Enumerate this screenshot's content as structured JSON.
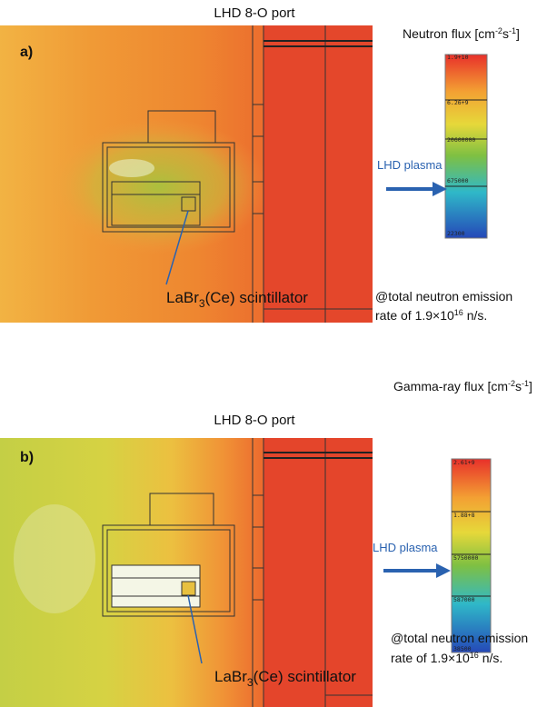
{
  "panels": [
    {
      "port_label": "LHD 8-O port",
      "panel_label": "a)",
      "flux_label": [
        "Neutron flux [cm",
        "-2",
        "s",
        "-1",
        "]"
      ],
      "colorbar_labels": [
        "1.9+10",
        "6.26+9",
        "20600000",
        "675000",
        "22300"
      ],
      "plasma_label": "LHD plasma",
      "detector_label": [
        "LaBr",
        "3",
        "(Ce) scintillator"
      ],
      "note": [
        "@total neutron emission",
        "rate of 1.9×10",
        "16",
        " n/s."
      ]
    },
    {
      "port_label": "LHD 8-O port",
      "panel_label": "b)",
      "flux_label": [
        "Gamma-ray flux [cm",
        "-2",
        "s",
        "-1",
        "]"
      ],
      "colorbar_labels": [
        "2.61+9",
        "1.88+8",
        "5750000",
        "587000",
        "38500"
      ],
      "plasma_label": "LHD plasma",
      "detector_label": [
        "LaBr",
        "3",
        "(Ce) scintillator"
      ],
      "note": [
        "@total neutron emission",
        "rate of 1.9×10",
        "16",
        " n/s."
      ]
    }
  ]
}
